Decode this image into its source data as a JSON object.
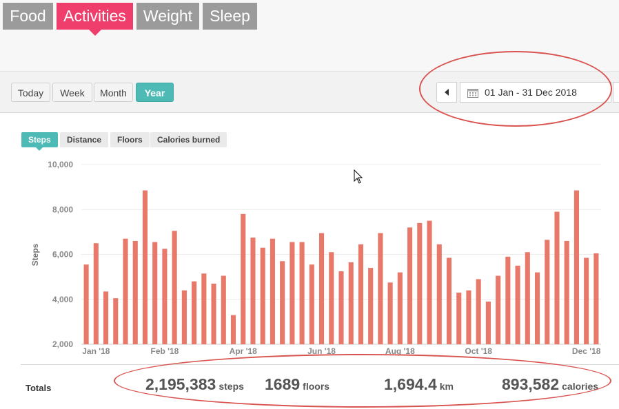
{
  "tabs": [
    {
      "label": "Food",
      "active": false
    },
    {
      "label": "Activities",
      "active": true
    },
    {
      "label": "Weight",
      "active": false
    },
    {
      "label": "Sleep",
      "active": false
    }
  ],
  "periods": [
    {
      "label": "Today",
      "active": false
    },
    {
      "label": "Week",
      "active": false
    },
    {
      "label": "Month",
      "active": false
    },
    {
      "label": "Year",
      "active": true
    }
  ],
  "date_range": {
    "text": "01 Jan - 31 Dec 2018",
    "icon": "calendar-icon"
  },
  "metric_tabs": [
    {
      "label": "Steps",
      "active": true
    },
    {
      "label": "Distance",
      "active": false
    },
    {
      "label": "Floors",
      "active": false
    },
    {
      "label": "Calories burned",
      "active": false
    }
  ],
  "chart_data": {
    "type": "bar",
    "ylabel": "Steps",
    "ylim": [
      2000,
      10000
    ],
    "yticks": [
      {
        "value": 2000,
        "label": "2,000"
      },
      {
        "value": 4000,
        "label": "4,000"
      },
      {
        "value": 6000,
        "label": "6,000"
      },
      {
        "value": 8000,
        "label": "8,000"
      },
      {
        "value": 10000,
        "label": "10,000"
      }
    ],
    "xticks": [
      {
        "index": 1,
        "label": "Jan '18"
      },
      {
        "index": 8,
        "label": "Feb '18"
      },
      {
        "index": 16,
        "label": "Apr '18"
      },
      {
        "index": 24,
        "label": "Jun '18"
      },
      {
        "index": 32,
        "label": "Aug '18"
      },
      {
        "index": 40,
        "label": "Oct '18"
      },
      {
        "index": 51,
        "label": "Dec '18"
      }
    ],
    "bar_color": "#e8796a",
    "grid": true,
    "values": [
      5550,
      6500,
      4350,
      4050,
      6700,
      6600,
      8850,
      6550,
      6250,
      7050,
      4400,
      4800,
      5150,
      4700,
      5050,
      3300,
      7800,
      6750,
      6300,
      6700,
      5700,
      6550,
      6550,
      5550,
      6950,
      6100,
      5250,
      5650,
      6450,
      5400,
      6950,
      4750,
      5200,
      7200,
      7400,
      7500,
      6450,
      5850,
      4300,
      4400,
      4900,
      3900,
      5050,
      5900,
      5500,
      6100,
      5200,
      6650,
      7900,
      6600,
      8850,
      5850,
      6050
    ]
  },
  "totals": {
    "label": "Totals",
    "items": [
      {
        "value": "2,195,383",
        "unit": "steps"
      },
      {
        "value": "1689",
        "unit": "floors"
      },
      {
        "value": "1,694.4",
        "unit": "km"
      },
      {
        "value": "893,582",
        "unit": "calories"
      }
    ]
  },
  "annotation_color": "#d9534f"
}
